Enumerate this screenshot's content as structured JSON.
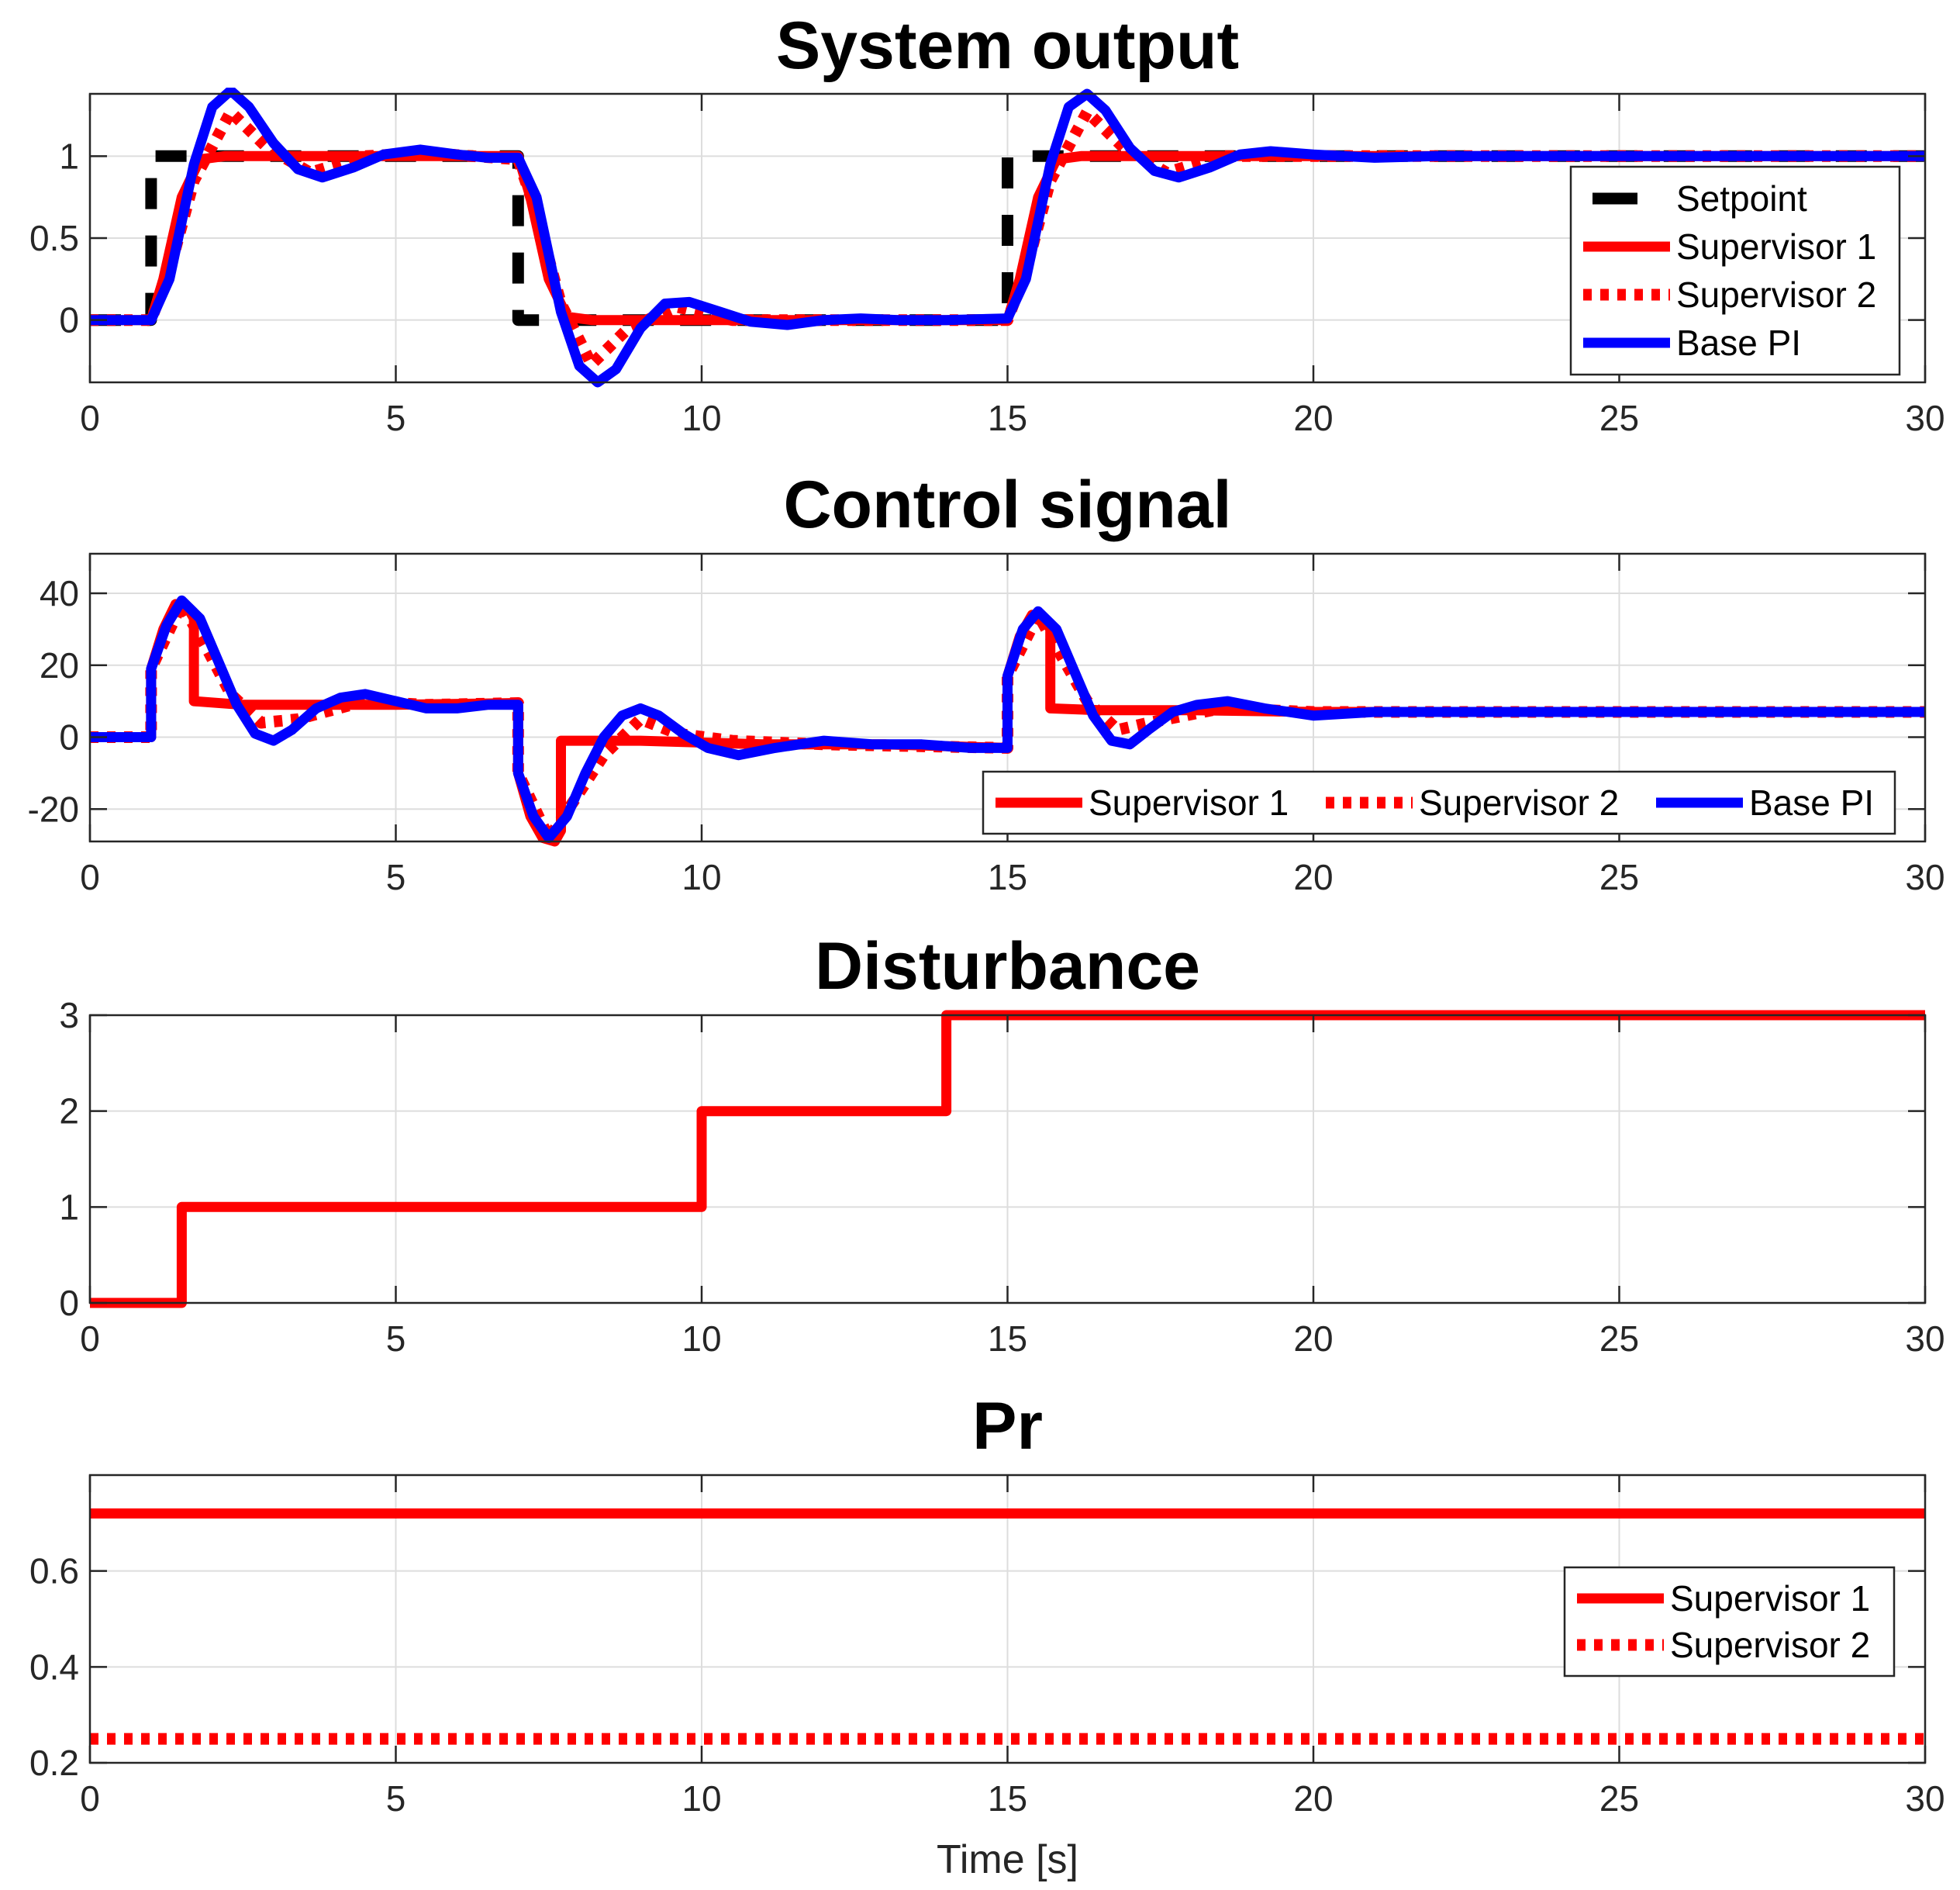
{
  "colors": {
    "setpoint": "#000000",
    "supervisor1": "#ff0000",
    "supervisor2": "#ff0000",
    "base_pi": "#0000ff"
  },
  "chart_data": [
    {
      "type": "line",
      "title": "System output",
      "xlabel": "",
      "ylabel": "",
      "xlim": [
        0,
        30
      ],
      "ylim": [
        -0.38,
        1.38
      ],
      "xticks": [
        0,
        5,
        10,
        15,
        20,
        25,
        30
      ],
      "yticks": [
        0,
        0.5,
        1
      ],
      "ytick_labels": [
        "0",
        "0.5",
        "1"
      ],
      "grid": true,
      "legend": {
        "placement": "right",
        "order": [
          "Setpoint",
          "Supervisor 1",
          "Supervisor 2",
          "Base PI"
        ]
      },
      "series": [
        {
          "name": "Setpoint",
          "style": "dashed",
          "color": "#000000",
          "x": [
            0,
            1,
            1,
            7,
            7,
            15,
            15,
            30
          ],
          "y": [
            0,
            0,
            1,
            1,
            0,
            0,
            1,
            1
          ]
        },
        {
          "name": "Supervisor 1",
          "style": "solid",
          "color": "#ff0000",
          "x": [
            0,
            1,
            1.2,
            1.5,
            1.8,
            2.2,
            3,
            5,
            7,
            7.2,
            7.5,
            7.8,
            8.2,
            9,
            10,
            13,
            15,
            15.2,
            15.5,
            15.8,
            16.2,
            17,
            20,
            30
          ],
          "y": [
            0,
            0,
            0.25,
            0.75,
            0.98,
            1.0,
            1.0,
            1.0,
            1.0,
            0.75,
            0.25,
            0.02,
            0.0,
            0.0,
            0.0,
            0.0,
            0.0,
            0.25,
            0.75,
            0.98,
            1.0,
            1.0,
            1.0,
            1.0
          ]
        },
        {
          "name": "Supervisor 2",
          "style": "dotted",
          "color": "#ff0000",
          "x": [
            0,
            1,
            1.3,
            1.7,
            2.3,
            2.9,
            3.6,
            4.5,
            5.5,
            7,
            7.3,
            7.7,
            8.2,
            8.8,
            9.6,
            10.5,
            12,
            15,
            15.3,
            15.7,
            16.3,
            16.9,
            17.6,
            18.5,
            20,
            30
          ],
          "y": [
            0,
            0,
            0.3,
            0.85,
            1.27,
            1.05,
            0.9,
            1.0,
            1.02,
            0.98,
            0.65,
            0.1,
            -0.27,
            -0.05,
            0.08,
            0.0,
            0.0,
            0.0,
            0.3,
            0.85,
            1.27,
            1.05,
            0.9,
            1.0,
            1.0,
            1.0
          ]
        },
        {
          "name": "Base PI",
          "style": "solid",
          "color": "#0000ff",
          "x": [
            0,
            1,
            1.3,
            1.7,
            2.0,
            2.3,
            2.6,
            3.0,
            3.4,
            3.8,
            4.3,
            4.8,
            5.4,
            6.0,
            6.5,
            7.0,
            7.3,
            7.7,
            8.0,
            8.3,
            8.6,
            9.0,
            9.4,
            9.8,
            10.3,
            10.8,
            11.4,
            12.0,
            12.6,
            13.2,
            14,
            15,
            15.3,
            15.7,
            16.0,
            16.3,
            16.6,
            17.0,
            17.4,
            17.8,
            18.3,
            18.8,
            19.3,
            20.0,
            21,
            22,
            23,
            25,
            30
          ],
          "y": [
            0,
            0,
            0.25,
            0.95,
            1.3,
            1.4,
            1.3,
            1.08,
            0.92,
            0.87,
            0.93,
            1.01,
            1.04,
            1.01,
            0.99,
            0.99,
            0.75,
            0.05,
            -0.28,
            -0.38,
            -0.3,
            -0.05,
            0.1,
            0.11,
            0.05,
            -0.01,
            -0.03,
            0.0,
            0.01,
            0.0,
            0.0,
            0.01,
            0.25,
            0.95,
            1.3,
            1.38,
            1.28,
            1.05,
            0.91,
            0.87,
            0.93,
            1.01,
            1.03,
            1.01,
            0.99,
            1.0,
            1.0,
            1.0,
            1.0
          ]
        }
      ]
    },
    {
      "type": "line",
      "title": "Control signal",
      "xlabel": "",
      "ylabel": "",
      "xlim": [
        0,
        30
      ],
      "ylim": [
        -29,
        51
      ],
      "xticks": [
        0,
        5,
        10,
        15,
        20,
        25,
        30
      ],
      "yticks": [
        -20,
        0,
        20,
        40
      ],
      "ytick_labels": [
        "-20",
        "0",
        "20",
        "40"
      ],
      "grid": true,
      "legend": {
        "placement": "bottom-right",
        "order": [
          "Supervisor 1",
          "Supervisor 2",
          "Base PI"
        ]
      },
      "series": [
        {
          "name": "Supervisor 1",
          "style": "solid",
          "color": "#ff0000",
          "x": [
            0,
            1,
            1,
            1.2,
            1.4,
            1.6,
            1.7,
            1.7,
            2.5,
            3.5,
            5,
            7,
            7,
            7.2,
            7.4,
            7.6,
            7.7,
            7.7,
            9,
            11,
            13,
            15,
            15,
            15.2,
            15.4,
            15.6,
            15.7,
            15.7,
            16.5,
            18,
            20,
            30
          ],
          "y": [
            0,
            0,
            19,
            30,
            37,
            36,
            33,
            10,
            9,
            9,
            9,
            9.5,
            -10,
            -22,
            -28,
            -29,
            -26,
            -1,
            -1,
            -2,
            -2,
            -3,
            17,
            28,
            34,
            33,
            30,
            8,
            7.5,
            7.5,
            7,
            7
          ]
        },
        {
          "name": "Supervisor 2",
          "style": "dotted",
          "color": "#ff0000",
          "x": [
            0,
            1,
            1,
            1.5,
            1.9,
            2.3,
            2.8,
            3.4,
            4.5,
            5.5,
            7,
            7,
            7.5,
            7.9,
            8.4,
            9.0,
            9.6,
            10.5,
            12,
            15,
            15,
            15.5,
            15.9,
            16.3,
            16.8,
            17.3,
            18.5,
            20,
            30
          ],
          "y": [
            0,
            0,
            19,
            37,
            25,
            12,
            4,
            5,
            10,
            9,
            9.5,
            -10,
            -28,
            -18,
            -5,
            5,
            1,
            -1,
            -2,
            -3,
            17,
            34,
            22,
            10,
            2,
            4,
            8,
            7,
            7
          ]
        },
        {
          "name": "Base PI",
          "style": "solid",
          "color": "#0000ff",
          "x": [
            0,
            1,
            1,
            1.25,
            1.5,
            1.8,
            2.1,
            2.4,
            2.7,
            3.0,
            3.3,
            3.7,
            4.1,
            4.5,
            5.0,
            5.5,
            6.0,
            6.5,
            7.0,
            7.0,
            7.25,
            7.5,
            7.8,
            8.1,
            8.4,
            8.7,
            9.0,
            9.3,
            9.7,
            10.1,
            10.6,
            11.2,
            12.0,
            12.8,
            13.6,
            14.4,
            15.0,
            15.0,
            15.25,
            15.5,
            15.8,
            16.1,
            16.4,
            16.7,
            17.0,
            17.3,
            17.7,
            18.1,
            18.6,
            19.2,
            20.0,
            21,
            22,
            25,
            30
          ],
          "y": [
            0,
            0,
            19,
            31,
            38,
            33,
            21,
            9,
            1,
            -1,
            2,
            8,
            11,
            12,
            10,
            8,
            8,
            9,
            9,
            -10,
            -22,
            -28,
            -22,
            -10,
            0,
            6,
            8,
            6,
            1,
            -3,
            -5,
            -3,
            -1,
            -2,
            -2,
            -3,
            -3,
            17,
            30,
            35,
            30,
            18,
            6,
            -1,
            -2,
            2,
            7,
            9,
            10,
            8,
            6,
            7,
            7,
            7,
            7
          ]
        }
      ]
    },
    {
      "type": "line",
      "title": "Disturbance",
      "xlabel": "",
      "ylabel": "",
      "xlim": [
        0,
        30
      ],
      "ylim": [
        0,
        3
      ],
      "xticks": [
        0,
        5,
        10,
        15,
        20,
        25,
        30
      ],
      "yticks": [
        0,
        1,
        2,
        3
      ],
      "ytick_labels": [
        "0",
        "1",
        "2",
        "3"
      ],
      "grid": true,
      "legend": null,
      "series": [
        {
          "name": "Disturbance",
          "style": "solid",
          "color": "#ff0000",
          "x": [
            0,
            1.5,
            1.5,
            10,
            10,
            14,
            14,
            30
          ],
          "y": [
            0,
            0,
            1,
            1,
            2,
            2,
            3,
            3
          ]
        }
      ]
    },
    {
      "type": "line",
      "title": "Pr",
      "xlabel": "Time [s]",
      "ylabel": "",
      "xlim": [
        0,
        30
      ],
      "ylim": [
        0.2,
        0.8
      ],
      "xticks": [
        0,
        5,
        10,
        15,
        20,
        25,
        30
      ],
      "yticks": [
        0.2,
        0.4,
        0.6
      ],
      "ytick_labels": [
        "0.2",
        "0.4",
        "0.6"
      ],
      "grid": true,
      "legend": {
        "placement": "right",
        "order": [
          "Supervisor 1",
          "Supervisor 2"
        ]
      },
      "series": [
        {
          "name": "Supervisor 1",
          "style": "solid",
          "color": "#ff0000",
          "x": [
            0,
            30
          ],
          "y": [
            0.72,
            0.72
          ]
        },
        {
          "name": "Supervisor 2",
          "style": "dotted",
          "color": "#ff0000",
          "x": [
            0,
            30
          ],
          "y": [
            0.25,
            0.25
          ]
        }
      ]
    }
  ]
}
